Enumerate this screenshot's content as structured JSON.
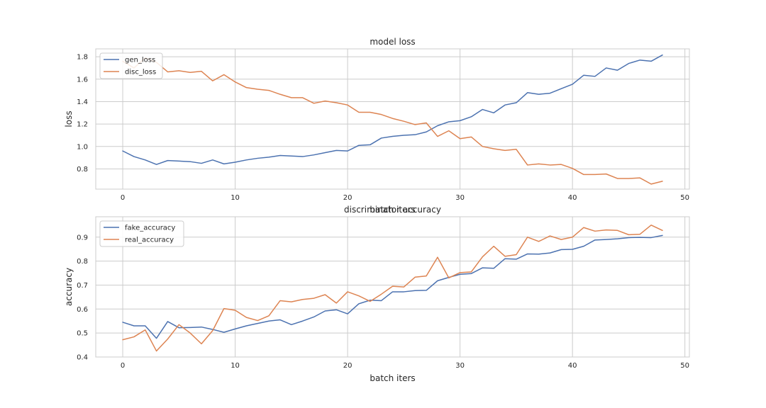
{
  "chart_data": [
    {
      "type": "line",
      "title": "model loss",
      "xlabel": "batch iters",
      "ylabel": "loss",
      "xlim": [
        -2.4,
        50.4
      ],
      "ylim": [
        0.62,
        1.87
      ],
      "xticks": [
        0,
        10,
        20,
        30,
        40,
        50
      ],
      "yticks": [
        0.8,
        1.0,
        1.2,
        1.4,
        1.6,
        1.8
      ],
      "ytick_labels": [
        "0.8",
        "1.0",
        "1.2",
        "1.4",
        "1.6",
        "1.8"
      ],
      "grid": true,
      "legend_position": "top-left",
      "x": [
        0,
        1,
        2,
        3,
        4,
        5,
        6,
        7,
        8,
        9,
        10,
        11,
        12,
        13,
        14,
        15,
        16,
        17,
        18,
        19,
        20,
        21,
        22,
        23,
        24,
        25,
        26,
        27,
        28,
        29,
        30,
        31,
        32,
        33,
        34,
        35,
        36,
        37,
        38,
        39,
        40,
        41,
        42,
        43,
        44,
        45,
        46,
        47,
        48
      ],
      "series": [
        {
          "name": "gen_loss",
          "color": "#4c72b0",
          "values": [
            0.96,
            0.91,
            0.88,
            0.84,
            0.875,
            0.87,
            0.865,
            0.85,
            0.88,
            0.845,
            0.86,
            0.88,
            0.895,
            0.905,
            0.92,
            0.915,
            0.91,
            0.925,
            0.945,
            0.965,
            0.96,
            1.01,
            1.015,
            1.075,
            1.09,
            1.1,
            1.105,
            1.13,
            1.185,
            1.22,
            1.23,
            1.265,
            1.33,
            1.3,
            1.37,
            1.39,
            1.48,
            1.465,
            1.475,
            1.515,
            1.555,
            1.635,
            1.625,
            1.7,
            1.68,
            1.74,
            1.77,
            1.76,
            1.815
          ]
        },
        {
          "name": "disc_loss",
          "color": "#dd8452",
          "values": [
            1.76,
            1.7,
            1.79,
            1.75,
            1.665,
            1.675,
            1.66,
            1.67,
            1.585,
            1.64,
            1.575,
            1.525,
            1.51,
            1.5,
            1.465,
            1.435,
            1.435,
            1.385,
            1.405,
            1.39,
            1.37,
            1.305,
            1.305,
            1.285,
            1.25,
            1.225,
            1.195,
            1.21,
            1.09,
            1.14,
            1.07,
            1.085,
            1.0,
            0.98,
            0.965,
            0.975,
            0.835,
            0.845,
            0.835,
            0.84,
            0.805,
            0.75,
            0.75,
            0.755,
            0.715,
            0.715,
            0.72,
            0.665,
            0.69
          ]
        }
      ]
    },
    {
      "type": "line",
      "title": "discriminator accuracy",
      "xlabel": "batch iters",
      "ylabel": "accuracy",
      "xlim": [
        -2.4,
        50.4
      ],
      "ylim": [
        0.4,
        0.985
      ],
      "xticks": [
        0,
        10,
        20,
        30,
        40,
        50
      ],
      "yticks": [
        0.4,
        0.5,
        0.6,
        0.7,
        0.8,
        0.9
      ],
      "ytick_labels": [
        "0.4",
        "0.5",
        "0.6",
        "0.7",
        "0.8",
        "0.9"
      ],
      "grid": true,
      "legend_position": "top-left",
      "x": [
        0,
        1,
        2,
        3,
        4,
        5,
        6,
        7,
        8,
        9,
        10,
        11,
        12,
        13,
        14,
        15,
        16,
        17,
        18,
        19,
        20,
        21,
        22,
        23,
        24,
        25,
        26,
        27,
        28,
        29,
        30,
        31,
        32,
        33,
        34,
        35,
        36,
        37,
        38,
        39,
        40,
        41,
        42,
        43,
        44,
        45,
        46,
        47,
        48
      ],
      "series": [
        {
          "name": "fake_accuracy",
          "color": "#4c72b0",
          "values": [
            0.545,
            0.53,
            0.53,
            0.478,
            0.548,
            0.522,
            0.523,
            0.525,
            0.515,
            0.503,
            0.517,
            0.53,
            0.54,
            0.55,
            0.555,
            0.535,
            0.55,
            0.567,
            0.592,
            0.597,
            0.58,
            0.622,
            0.637,
            0.635,
            0.672,
            0.672,
            0.677,
            0.678,
            0.718,
            0.732,
            0.745,
            0.748,
            0.772,
            0.77,
            0.81,
            0.808,
            0.83,
            0.829,
            0.834,
            0.848,
            0.849,
            0.862,
            0.888,
            0.89,
            0.893,
            0.898,
            0.899,
            0.898,
            0.907
          ]
        },
        {
          "name": "real_accuracy",
          "color": "#dd8452",
          "values": [
            0.472,
            0.484,
            0.513,
            0.425,
            0.475,
            0.535,
            0.5,
            0.455,
            0.51,
            0.602,
            0.595,
            0.565,
            0.552,
            0.572,
            0.635,
            0.63,
            0.64,
            0.645,
            0.66,
            0.625,
            0.672,
            0.655,
            0.632,
            0.662,
            0.695,
            0.692,
            0.733,
            0.738,
            0.816,
            0.73,
            0.752,
            0.755,
            0.818,
            0.862,
            0.82,
            0.827,
            0.9,
            0.882,
            0.905,
            0.89,
            0.9,
            0.94,
            0.925,
            0.93,
            0.928,
            0.91,
            0.912,
            0.95,
            0.928
          ]
        }
      ]
    }
  ]
}
